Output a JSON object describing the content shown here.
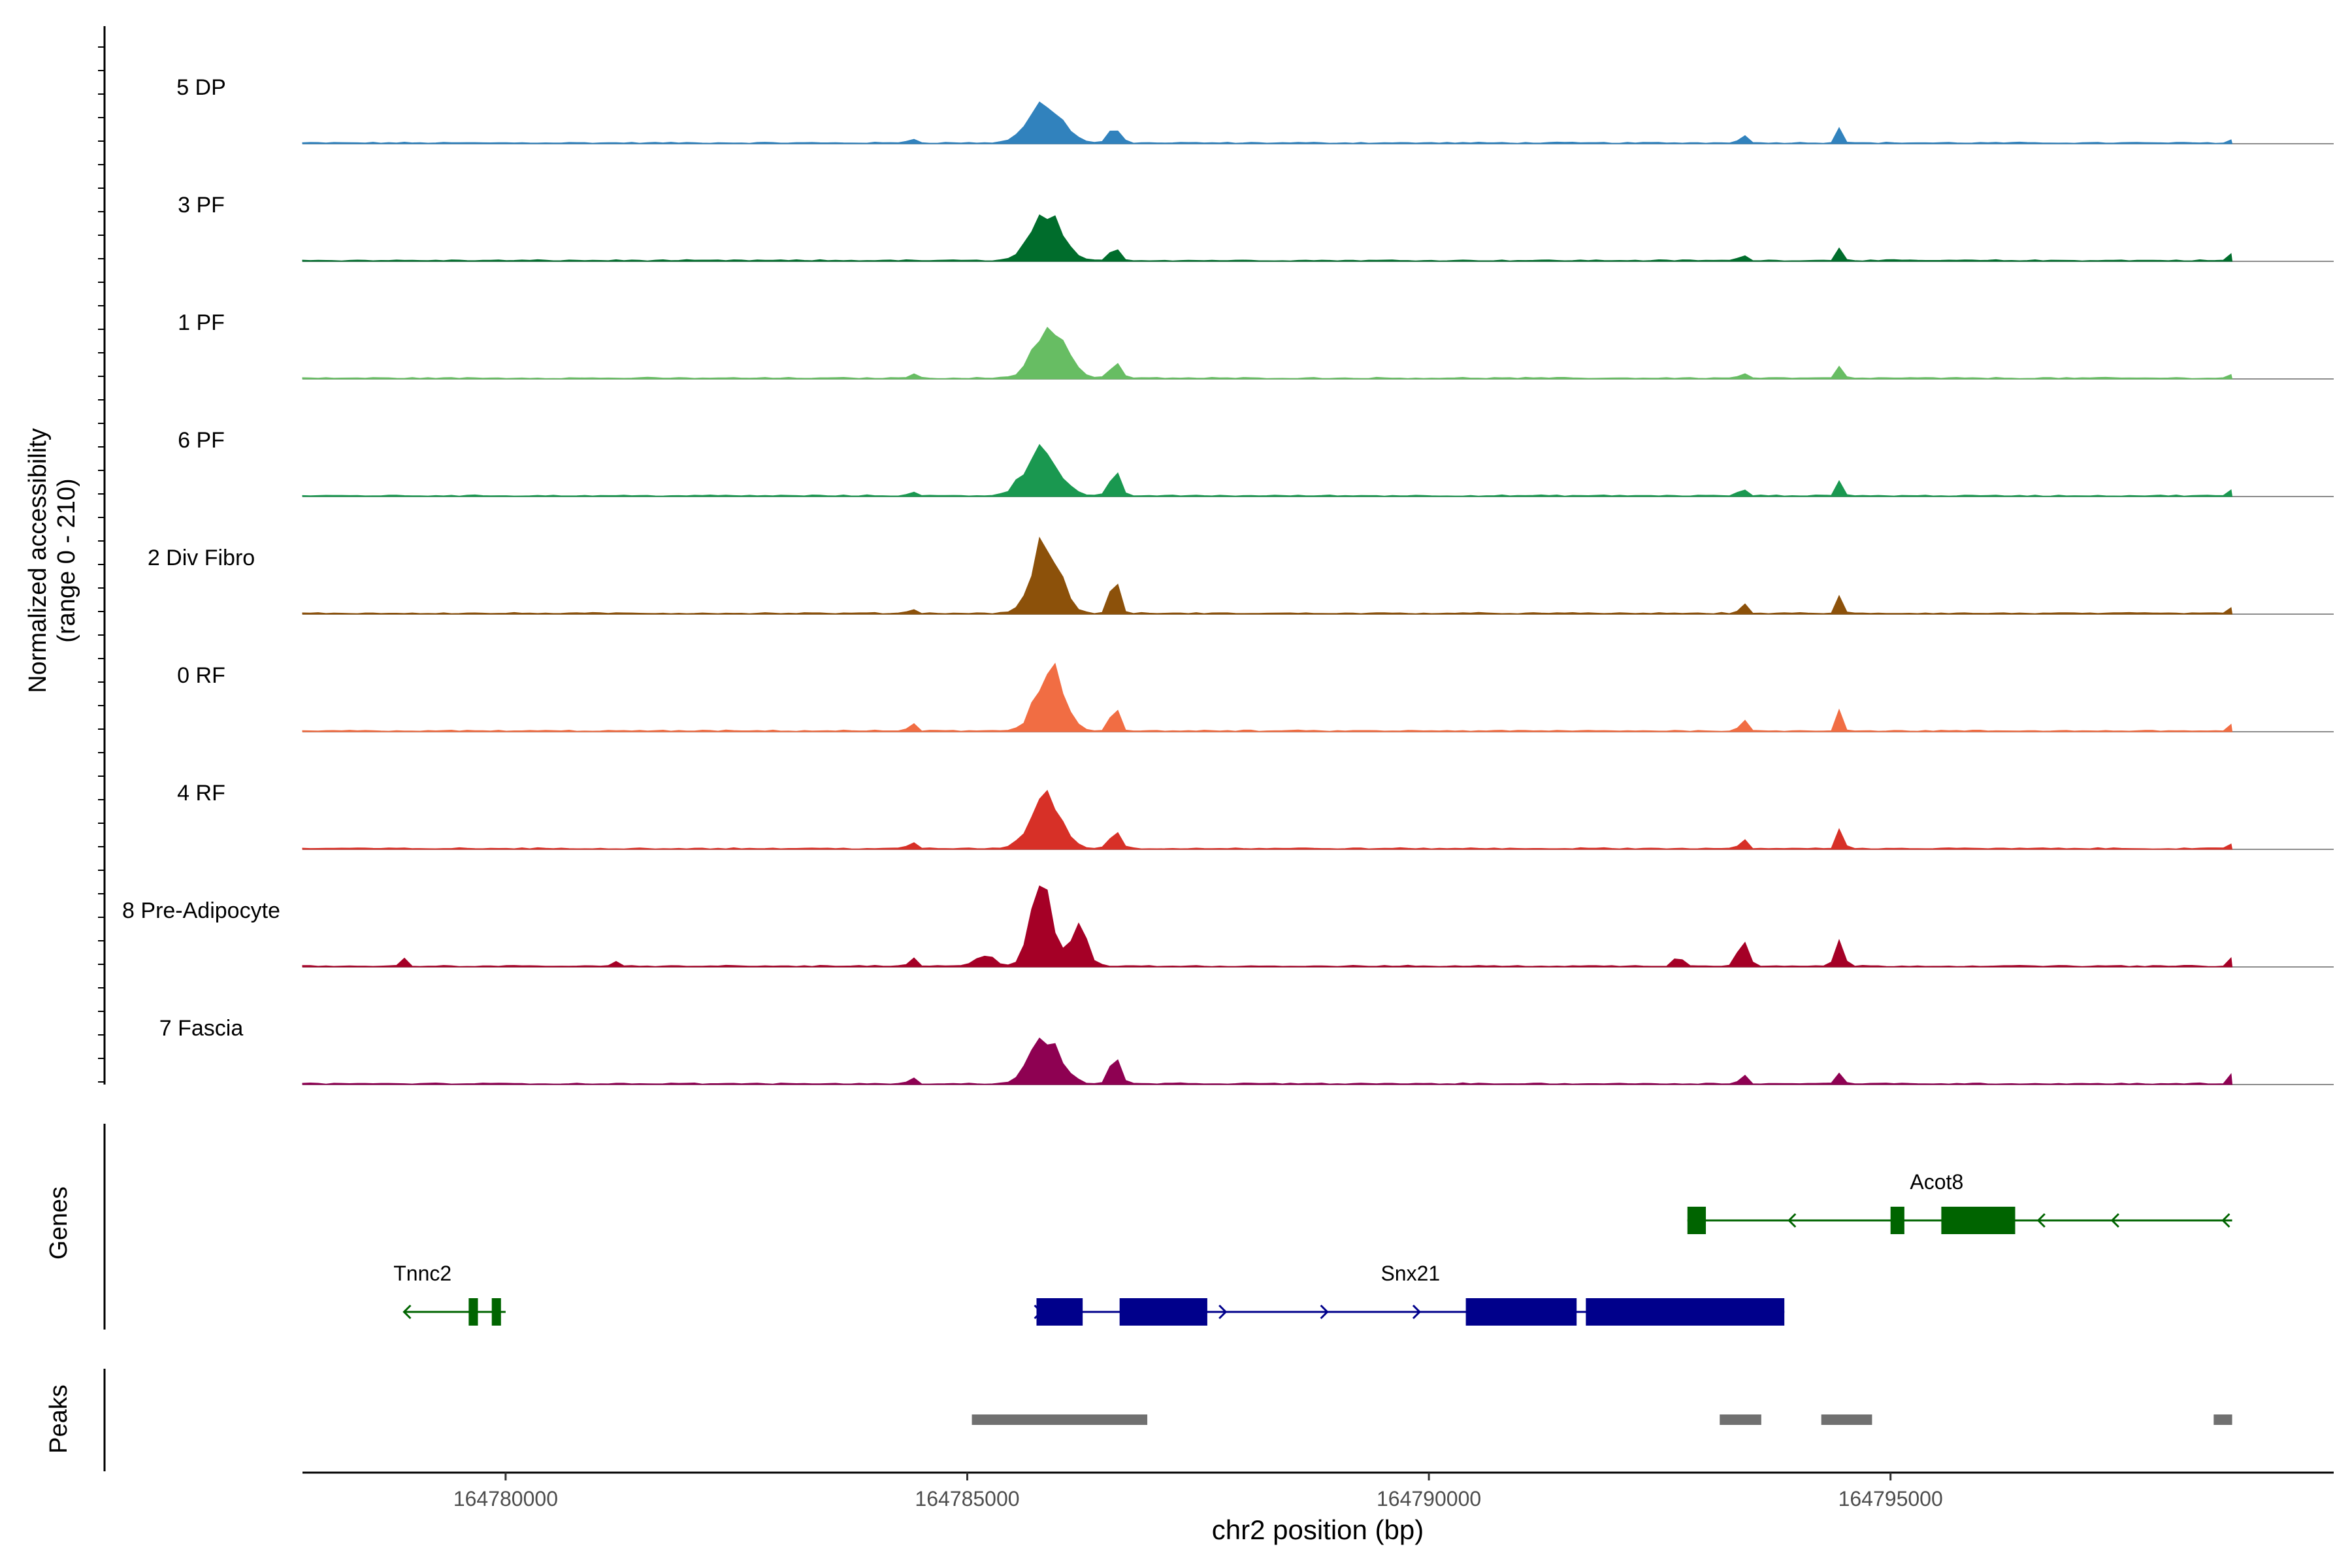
{
  "chart_data": [
    {
      "type": "area",
      "title": "",
      "ylabel_line1": "Normalized accessibility",
      "ylabel_line2": "(range 0 - 210)",
      "ylim": [
        0,
        210
      ],
      "xlim": [
        164777800,
        164799800
      ],
      "region_end": 164798700,
      "series": [
        {
          "name": "5 DP",
          "color": "#3182BD",
          "peaks": [
            [
              164785850,
              90,
              550
            ],
            [
              164786600,
              30,
              200
            ],
            [
              164784400,
              12,
              120
            ],
            [
              164793400,
              22,
              120
            ],
            [
              164794450,
              35,
              110
            ],
            [
              164798700,
              8,
              60
            ]
          ]
        },
        {
          "name": "3 PF",
          "color": "#006D2C",
          "peaks": [
            [
              164785850,
              110,
              500
            ],
            [
              164786600,
              35,
              150
            ],
            [
              164793400,
              15,
              120
            ],
            [
              164794450,
              28,
              110
            ],
            [
              164798700,
              18,
              60
            ]
          ]
        },
        {
          "name": "1 PF",
          "color": "#67BD63",
          "peaks": [
            [
              164785900,
              115,
              520
            ],
            [
              164786600,
              30,
              200
            ],
            [
              164784400,
              10,
              110
            ],
            [
              164793400,
              12,
              120
            ],
            [
              164794450,
              22,
              110
            ],
            [
              164798700,
              10,
              60
            ]
          ]
        },
        {
          "name": "6 PF",
          "color": "#1A9850",
          "peaks": [
            [
              164785800,
              100,
              550
            ],
            [
              164786600,
              50,
              180
            ],
            [
              164784400,
              10,
              120
            ],
            [
              164793400,
              18,
              120
            ],
            [
              164794450,
              30,
              110
            ],
            [
              164798700,
              15,
              60
            ]
          ]
        },
        {
          "name": "2 Div Fibro",
          "color": "#8C510A",
          "peaks": [
            [
              164785850,
              160,
              460
            ],
            [
              164786600,
              75,
              150
            ],
            [
              164784400,
              12,
              110
            ],
            [
              164793400,
              25,
              100
            ],
            [
              164794450,
              35,
              100
            ],
            [
              164798700,
              14,
              60
            ]
          ]
        },
        {
          "name": "0 RF",
          "color": "#F16D43",
          "peaks": [
            [
              164785900,
              145,
              450
            ],
            [
              164786600,
              55,
              150
            ],
            [
              164784400,
              18,
              110
            ],
            [
              164793400,
              30,
              110
            ],
            [
              164794450,
              45,
              100
            ],
            [
              164798700,
              14,
              60
            ]
          ]
        },
        {
          "name": "4 RF",
          "color": "#D73027",
          "peaks": [
            [
              164785850,
              115,
              500
            ],
            [
              164786600,
              35,
              200
            ],
            [
              164784400,
              15,
              110
            ],
            [
              164793400,
              20,
              110
            ],
            [
              164794450,
              45,
              110
            ],
            [
              164798700,
              10,
              60
            ]
          ]
        },
        {
          "name": "8 Pre-Adipocyte",
          "color": "#A50026",
          "peaks": [
            [
              164785800,
              170,
              350
            ],
            [
              164786200,
              80,
              300
            ],
            [
              164784400,
              20,
              100
            ],
            [
              164785200,
              25,
              300
            ],
            [
              164793400,
              60,
              180
            ],
            [
              164794450,
              50,
              150
            ],
            [
              164792700,
              20,
              150
            ],
            [
              164798700,
              25,
              60
            ],
            [
              164778900,
              20,
              60
            ],
            [
              164781200,
              10,
              50
            ]
          ]
        },
        {
          "name": "7 Fascia",
          "color": "#8E0152",
          "peaks": [
            [
              164785850,
              100,
              500
            ],
            [
              164786600,
              60,
              180
            ],
            [
              164784400,
              12,
              110
            ],
            [
              164793400,
              20,
              120
            ],
            [
              164794450,
              30,
              110
            ],
            [
              164798700,
              22,
              60
            ]
          ]
        }
      ]
    },
    {
      "type": "gene-track",
      "ylabel": "Genes",
      "genes": [
        {
          "name": "Acot8",
          "strand": "-",
          "start": 164792800,
          "end": 164798700,
          "color": "#006400",
          "exons": [
            [
              164792800,
              164793000
            ],
            [
              164795000,
              164795150
            ],
            [
              164795550,
              164796350
            ]
          ],
          "arrows": [
            164793900,
            164796600,
            164797400,
            164798600
          ]
        },
        {
          "name": "Tnnc2",
          "strand": "-",
          "start": 164778900,
          "end": 164780000,
          "color": "#006400",
          "exons": [
            [
              164779600,
              164779700
            ],
            [
              164779850,
              164779950
            ]
          ],
          "arrows": [
            164778900
          ]
        },
        {
          "name": "Snx21",
          "strand": "+",
          "start": 164785750,
          "end": 164793850,
          "color": "#00008B",
          "exons": [
            [
              164785750,
              164786250
            ],
            [
              164786650,
              164787600
            ],
            [
              164790400,
              164791600
            ],
            [
              164791700,
              164793850
            ]
          ],
          "arrows": [
            164785800,
            164787800,
            164788900,
            164789900
          ]
        }
      ]
    },
    {
      "type": "peak-track",
      "ylabel": "Peaks",
      "color": "#707070",
      "peaks": [
        [
          164785050,
          164786950
        ],
        [
          164793150,
          164793600
        ],
        [
          164794250,
          164794800
        ],
        [
          164798500,
          164798700
        ]
      ]
    }
  ],
  "x_axis": {
    "label": "chr2 position (bp)",
    "ticks": [
      164780000,
      164785000,
      164790000,
      164795000
    ]
  }
}
